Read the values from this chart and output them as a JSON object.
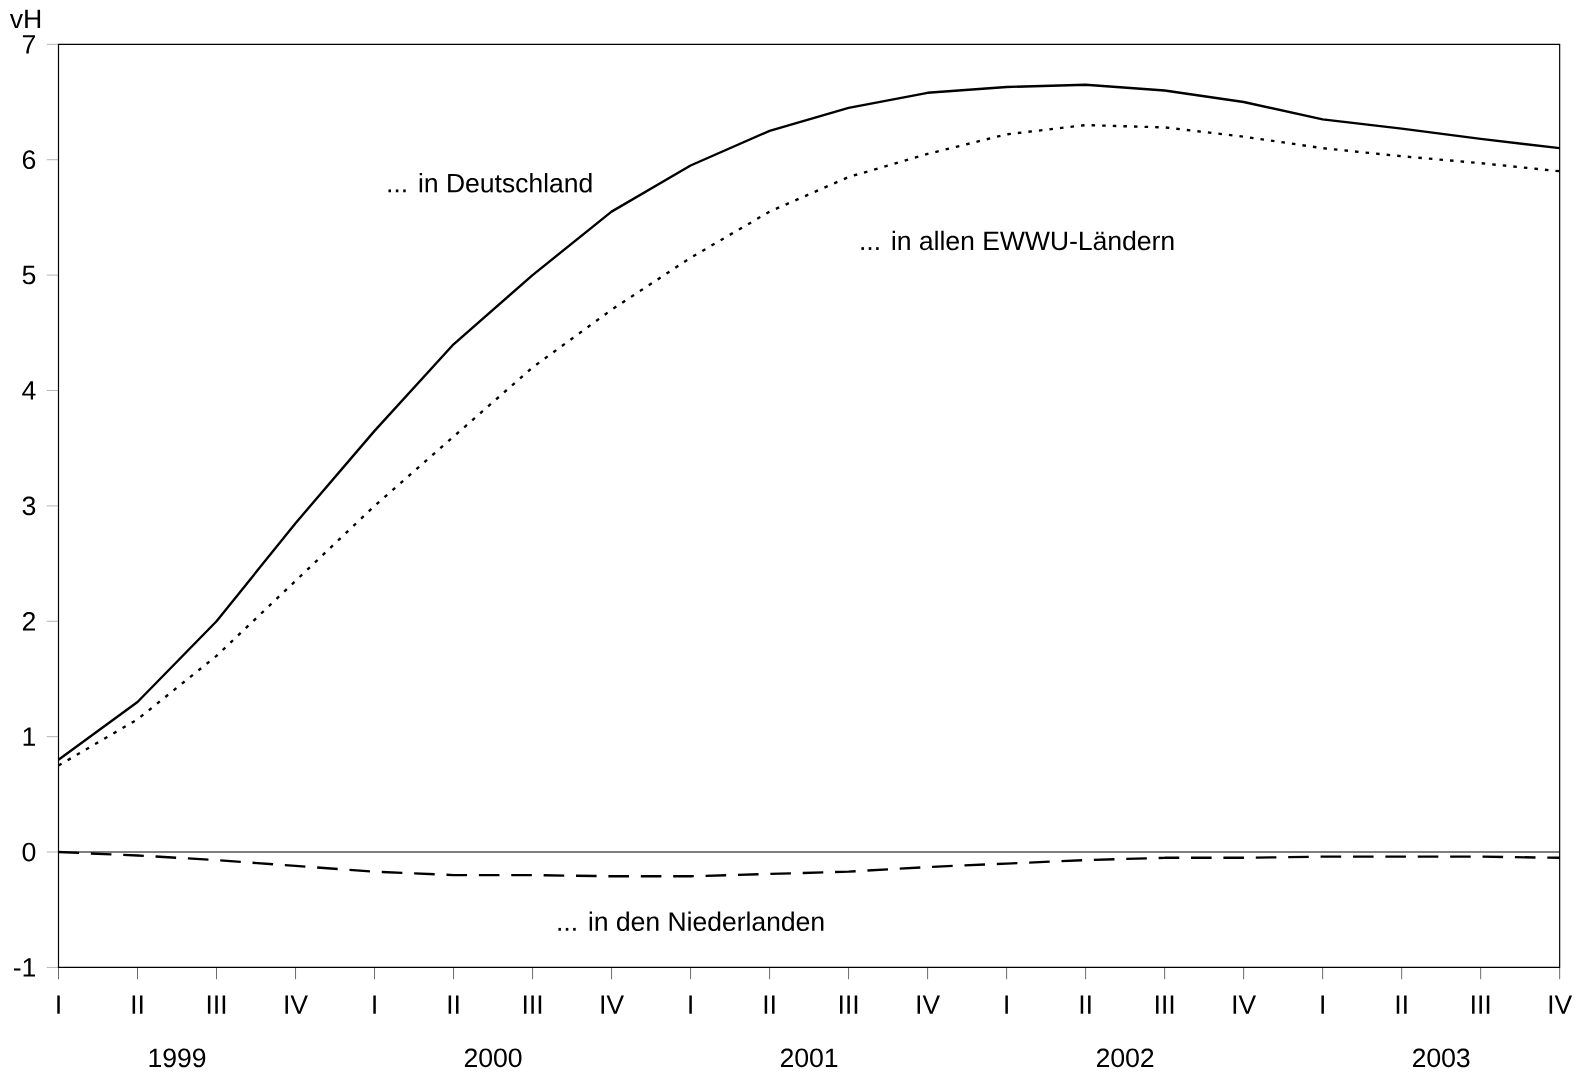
{
  "chart_data": {
    "type": "line",
    "ylabel": "vH",
    "categories": [
      "I",
      "II",
      "III",
      "IV",
      "I",
      "II",
      "III",
      "IV",
      "I",
      "II",
      "III",
      "IV",
      "I",
      "II",
      "III",
      "IV",
      "I",
      "II",
      "III",
      "IV"
    ],
    "annotations": [
      "1999",
      "2000",
      "2001",
      "2002",
      "2003"
    ],
    "ylim": [
      -1,
      7
    ],
    "yticks": [
      -1,
      0,
      1,
      2,
      3,
      4,
      5,
      6,
      7
    ],
    "ref_lines": [
      {
        "axis": "y",
        "value": 0,
        "color": "#000000",
        "line_style": "solid"
      }
    ],
    "series": [
      {
        "name": "... in Deutschland",
        "color": "#000000",
        "line_style": "solid",
        "values": [
          0.8,
          1.3,
          2.0,
          2.85,
          3.65,
          4.4,
          5.0,
          5.55,
          5.95,
          6.25,
          6.45,
          6.58,
          6.63,
          6.65,
          6.6,
          6.5,
          6.35,
          6.27,
          6.18,
          6.1
        ]
      },
      {
        "name": "... in allen EWWU-Ländern",
        "color": "#000000",
        "line_style": "dotted",
        "values": [
          0.75,
          1.15,
          1.7,
          2.35,
          3.0,
          3.6,
          4.2,
          4.7,
          5.15,
          5.55,
          5.85,
          6.05,
          6.22,
          6.3,
          6.28,
          6.2,
          6.1,
          6.03,
          5.97,
          5.9
        ]
      },
      {
        "name": "... in den Niederlanden",
        "color": "#000000",
        "line_style": "dashed",
        "values": [
          0,
          -0.03,
          -0.07,
          -0.12,
          -0.17,
          -0.2,
          -0.2,
          -0.21,
          -0.21,
          -0.19,
          -0.17,
          -0.13,
          -0.1,
          -0.07,
          -0.05,
          -0.05,
          -0.04,
          -0.04,
          -0.04,
          -0.05
        ]
      }
    ]
  }
}
